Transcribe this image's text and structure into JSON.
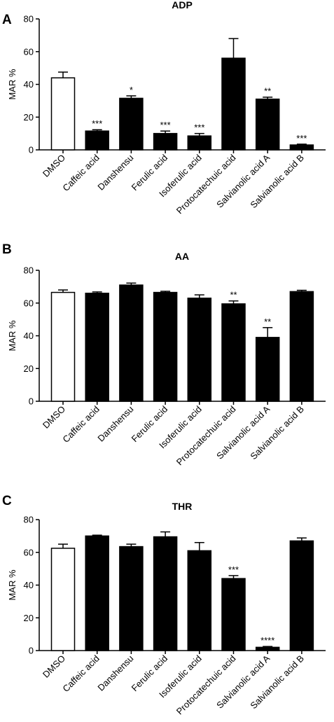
{
  "chart_data": [
    {
      "panel": "A",
      "type": "bar",
      "title": "ADP",
      "ylabel": "MAR %",
      "ylim": [
        0,
        80
      ],
      "yticks": [
        0,
        20,
        40,
        60,
        80
      ],
      "categories": [
        "DMSO",
        "Caffeic acid",
        "Danshensu",
        "Ferulic acid",
        "Isoferulic acid",
        "Protocatechuic acid",
        "Salvianolic acid A",
        "Salvianolic acid B"
      ],
      "values": [
        44,
        11.5,
        31.5,
        10,
        8.5,
        56,
        31,
        3
      ],
      "errors": [
        3.5,
        0.8,
        1.5,
        1.5,
        1.5,
        12,
        1.2,
        0.5
      ],
      "significance": [
        "",
        "***",
        "*",
        "***",
        "***",
        "",
        "**",
        "***"
      ],
      "fills": [
        "#ffffff",
        "#000000",
        "#000000",
        "#000000",
        "#000000",
        "#000000",
        "#000000",
        "#000000"
      ]
    },
    {
      "panel": "B",
      "type": "bar",
      "title": "AA",
      "ylabel": "MAR %",
      "ylim": [
        0,
        80
      ],
      "yticks": [
        0,
        20,
        40,
        60,
        80
      ],
      "categories": [
        "DMSO",
        "Caffeic acid",
        "Danshensu",
        "Ferulic acid",
        "Isoferulic acid",
        "Protocatechuic acid",
        "Salvianolic acid A",
        "Salvianolic acid B"
      ],
      "values": [
        66.5,
        66,
        71,
        66.5,
        63,
        59.5,
        39,
        67
      ],
      "errors": [
        1.5,
        0.8,
        1.2,
        0.7,
        2,
        1.8,
        6,
        0.8
      ],
      "significance": [
        "",
        "",
        "",
        "",
        "",
        "**",
        "**",
        ""
      ],
      "fills": [
        "#ffffff",
        "#000000",
        "#000000",
        "#000000",
        "#000000",
        "#000000",
        "#000000",
        "#000000"
      ]
    },
    {
      "panel": "C",
      "type": "bar",
      "title": "THR",
      "ylabel": "MAR %",
      "ylim": [
        0,
        80
      ],
      "yticks": [
        0,
        20,
        40,
        60,
        80
      ],
      "categories": [
        "DMSO",
        "Caffeic acid",
        "Danshensu",
        "Ferulic acid",
        "Isoferulic acid",
        "Protocatechuic acid",
        "Salvianolic acid A",
        "Salvianolic acid B"
      ],
      "values": [
        62.5,
        70,
        63.5,
        69.5,
        61,
        44,
        2,
        67
      ],
      "errors": [
        2.5,
        0.5,
        1.5,
        3,
        5,
        1.8,
        0.5,
        1.8
      ],
      "significance": [
        "",
        "",
        "",
        "",
        "",
        "***",
        "****",
        ""
      ],
      "fills": [
        "#ffffff",
        "#000000",
        "#000000",
        "#000000",
        "#000000",
        "#000000",
        "#000000",
        "#000000"
      ]
    }
  ]
}
